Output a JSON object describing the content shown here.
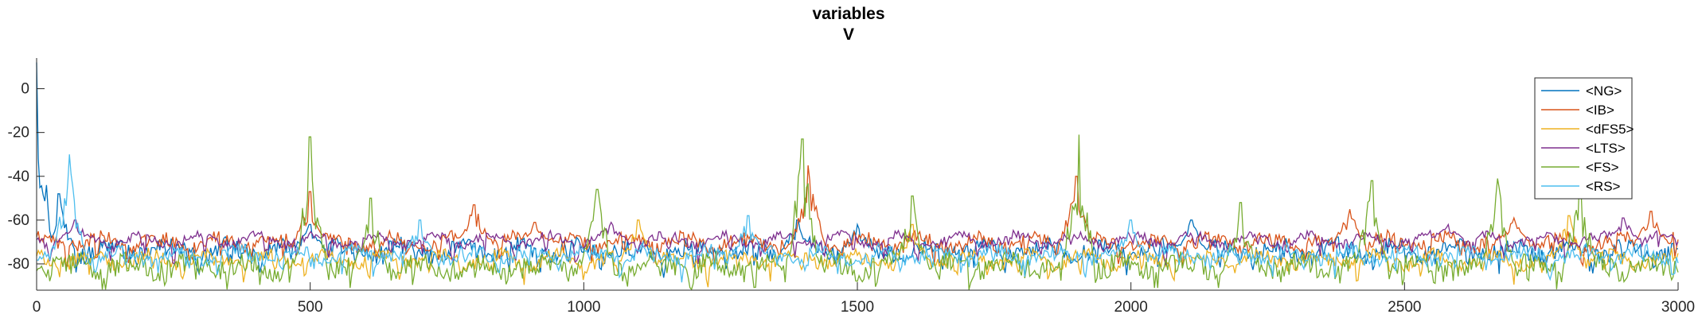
{
  "chart_data": {
    "type": "line",
    "title": "variables",
    "subtitle": "V",
    "xlabel": "",
    "ylabel": "",
    "xlim": [
      0,
      3000
    ],
    "ylim": [
      -92,
      14
    ],
    "xticks": [
      0,
      500,
      1000,
      1500,
      2000,
      2500,
      3000
    ],
    "yticks": [
      0,
      -20,
      -40,
      -60,
      -80
    ],
    "grid": false,
    "legend_position": "top-right",
    "series": [
      {
        "name": "<NG>",
        "color": "#0072BD",
        "baseline": -74,
        "noise": 4,
        "spikes": [
          [
            0,
            12
          ],
          [
            40,
            -48
          ],
          [
            500,
            -62
          ],
          [
            1390,
            -60
          ],
          [
            1500,
            -62
          ],
          [
            2110,
            -60
          ]
        ]
      },
      {
        "name": "<IB>",
        "color": "#D95319",
        "baseline": -70,
        "noise": 3,
        "spikes": [
          [
            500,
            -47
          ],
          [
            800,
            -53
          ],
          [
            910,
            -61
          ],
          [
            1410,
            -35
          ],
          [
            1900,
            -40
          ],
          [
            2400,
            -55
          ],
          [
            2700,
            -59
          ],
          [
            2950,
            -56
          ]
        ]
      },
      {
        "name": "<dFS5>",
        "color": "#EDB120",
        "baseline": -78,
        "noise": 3,
        "spikes": [
          [
            1100,
            -60
          ],
          [
            1600,
            -62
          ],
          [
            2800,
            -58
          ]
        ]
      },
      {
        "name": "<LTS>",
        "color": "#7E2F8E",
        "baseline": -69,
        "noise": 2,
        "spikes": [
          [
            70,
            -60
          ],
          [
            1050,
            -61
          ],
          [
            2580,
            -62
          ],
          [
            2900,
            -59
          ]
        ]
      },
      {
        "name": "<FS>",
        "color": "#77AC30",
        "baseline": -81,
        "noise": 5,
        "spikes": [
          [
            500,
            -22
          ],
          [
            610,
            -50
          ],
          [
            1025,
            -46
          ],
          [
            1400,
            -23
          ],
          [
            1600,
            -49
          ],
          [
            1905,
            -21
          ],
          [
            2200,
            -52
          ],
          [
            2440,
            -42
          ],
          [
            2670,
            -41
          ],
          [
            2820,
            -40
          ]
        ]
      },
      {
        "name": "<RS>",
        "color": "#4DBEEE",
        "baseline": -76,
        "noise": 3,
        "spikes": [
          [
            60,
            -30
          ],
          [
            700,
            -60
          ],
          [
            1300,
            -58
          ],
          [
            2000,
            -60
          ]
        ]
      }
    ]
  }
}
